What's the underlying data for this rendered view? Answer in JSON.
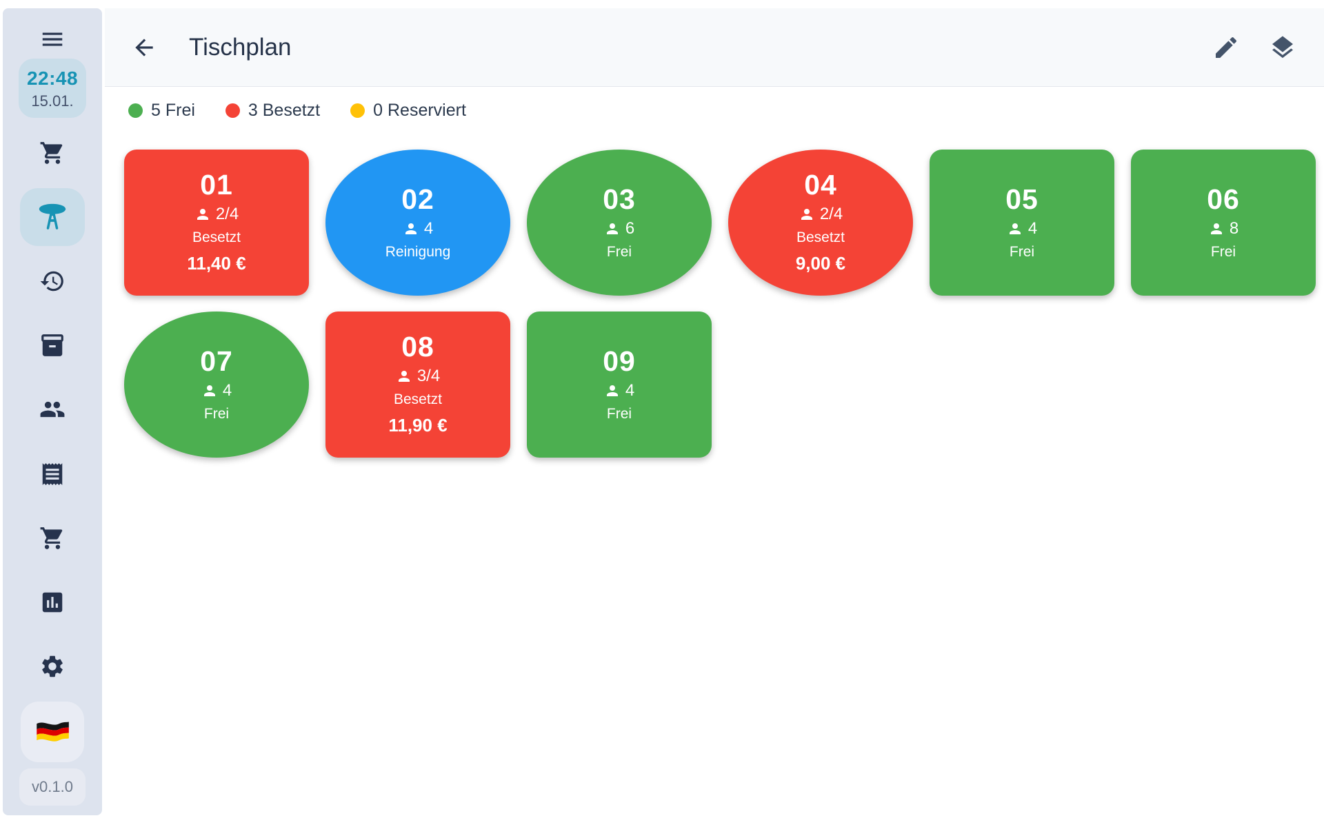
{
  "sidebar": {
    "menu_icon": "menu",
    "time": "22:48",
    "date": "15.01.",
    "nav": [
      {
        "icon": "shopping-cart",
        "active": false
      },
      {
        "icon": "restaurant-table",
        "active": true
      },
      {
        "icon": "history",
        "active": false
      },
      {
        "icon": "inventory-box",
        "active": false
      },
      {
        "icon": "customers",
        "active": false
      },
      {
        "icon": "receipt",
        "active": false
      },
      {
        "icon": "shopping-cart",
        "active": false
      },
      {
        "icon": "bar-chart",
        "active": false
      },
      {
        "icon": "settings",
        "active": false
      }
    ],
    "language_flag": "german-flag",
    "version": "v0.1.0"
  },
  "header": {
    "title": "Tischplan",
    "icons": [
      "back-arrow",
      "edit-pencil",
      "layers"
    ]
  },
  "legend": [
    {
      "label": "5 Frei",
      "color": "#4caf50"
    },
    {
      "label": "3 Besetzt",
      "color": "#f44336"
    },
    {
      "label": "0 Reserviert",
      "color": "#ffc107"
    }
  ],
  "tables": [
    {
      "number": "01",
      "shape": "rect",
      "color": "#f44336",
      "capacity": "2/4",
      "status": "Besetzt",
      "price": "11,40 €"
    },
    {
      "number": "02",
      "shape": "ellipse",
      "color": "#2196f3",
      "capacity": "4",
      "status": "Reinigung",
      "price": null
    },
    {
      "number": "03",
      "shape": "ellipse",
      "color": "#4caf50",
      "capacity": "6",
      "status": "Frei",
      "price": null
    },
    {
      "number": "04",
      "shape": "ellipse",
      "color": "#f44336",
      "capacity": "2/4",
      "status": "Besetzt",
      "price": "9,00 €"
    },
    {
      "number": "05",
      "shape": "rect",
      "color": "#4caf50",
      "capacity": "4",
      "status": "Frei",
      "price": null
    },
    {
      "number": "06",
      "shape": "rect",
      "color": "#4caf50",
      "capacity": "8",
      "status": "Frei",
      "price": null
    },
    {
      "number": "07",
      "shape": "ellipse",
      "color": "#4caf50",
      "capacity": "4",
      "status": "Frei",
      "price": null
    },
    {
      "number": "08",
      "shape": "rect",
      "color": "#f44336",
      "capacity": "3/4",
      "status": "Besetzt",
      "price": "11,90 €"
    },
    {
      "number": "09",
      "shape": "rect",
      "color": "#4caf50",
      "capacity": "4",
      "status": "Frei",
      "price": null
    }
  ],
  "colors": {
    "free": "#4caf50",
    "occupied": "#f44336",
    "cleaning": "#2196f3",
    "reserved": "#ffc107",
    "accent_teal": "#1793b4",
    "sidebar_bg": "#dde3ee",
    "highlight_bg": "#c9dde9"
  }
}
